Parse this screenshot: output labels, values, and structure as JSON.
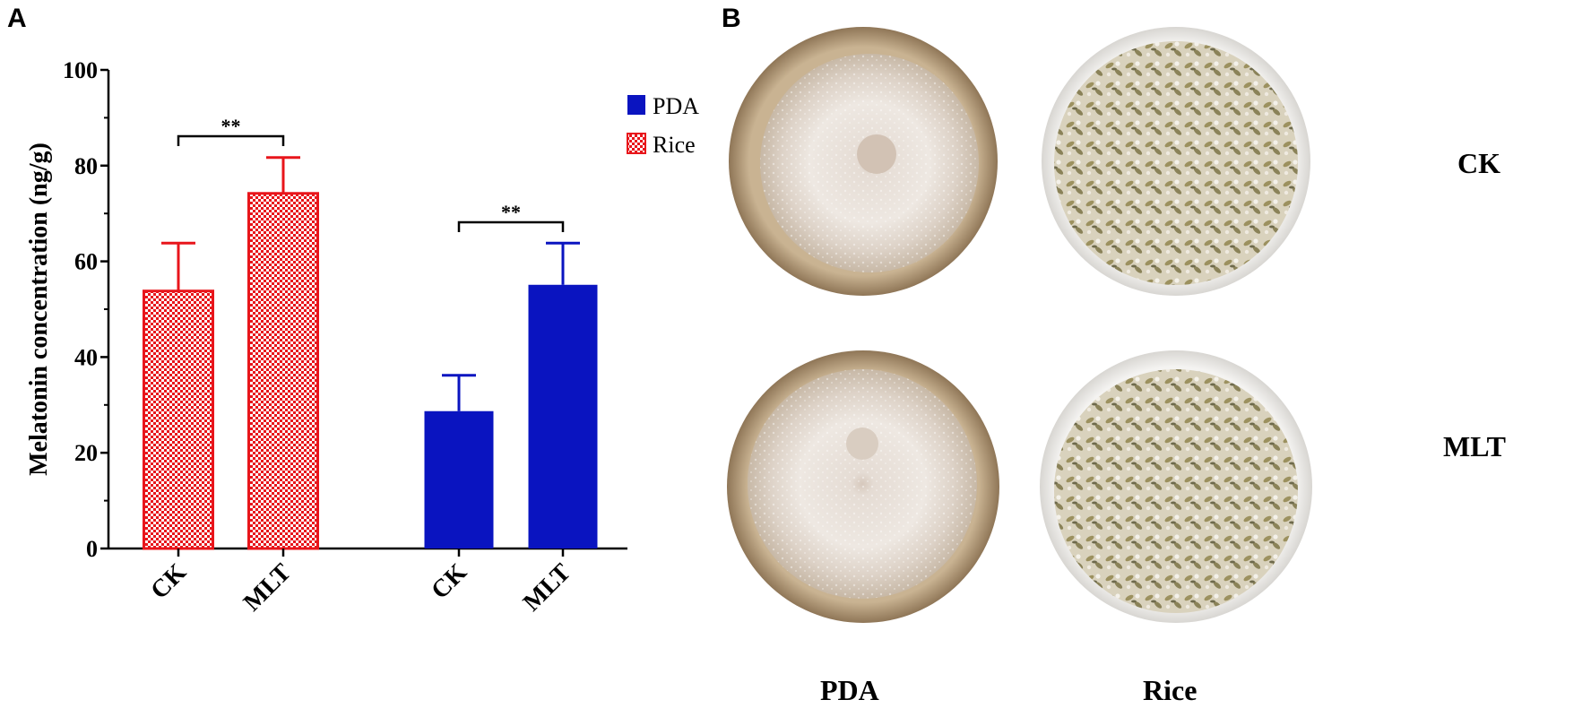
{
  "panels": {
    "a_label": "A",
    "b_label": "B"
  },
  "chart_data": {
    "type": "bar",
    "ylabel": "Melatonin concentration (ng/g)",
    "ylim": [
      0,
      100
    ],
    "yticks": [
      0,
      20,
      40,
      60,
      80,
      100
    ],
    "ytick_labels": [
      "0",
      "20",
      "40",
      "60",
      "80",
      "100"
    ],
    "categories": [
      "CK",
      "MLT",
      "CK",
      "MLT"
    ],
    "series": [
      {
        "name": "Rice",
        "color": "#e8151b",
        "pattern": "checkered",
        "x": [
          "CK",
          "MLT"
        ],
        "values": [
          53.8,
          74.2
        ],
        "errors": [
          10.0,
          7.5
        ]
      },
      {
        "name": "PDA",
        "color": "#0a14c0",
        "pattern": "solid",
        "x": [
          "CK",
          "MLT"
        ],
        "values": [
          28.7,
          55.1
        ],
        "errors": [
          7.5,
          8.7
        ]
      }
    ],
    "significance": [
      {
        "label": "**",
        "between": [
          "Rice CK",
          "Rice MLT"
        ]
      },
      {
        "label": "**",
        "between": [
          "PDA CK",
          "PDA MLT"
        ]
      }
    ],
    "legend": {
      "position": "top-right",
      "entries": [
        "PDA",
        "Rice"
      ]
    },
    "grid": false
  },
  "photos": {
    "columns": [
      "PDA",
      "Rice"
    ],
    "rows": [
      "CK",
      "MLT"
    ],
    "colors": {
      "pda_dish": "#b89f7e",
      "pda_colony": "#ece5de",
      "rice_dish": "#efeeec",
      "rice_grain": "#b7ab82"
    }
  }
}
